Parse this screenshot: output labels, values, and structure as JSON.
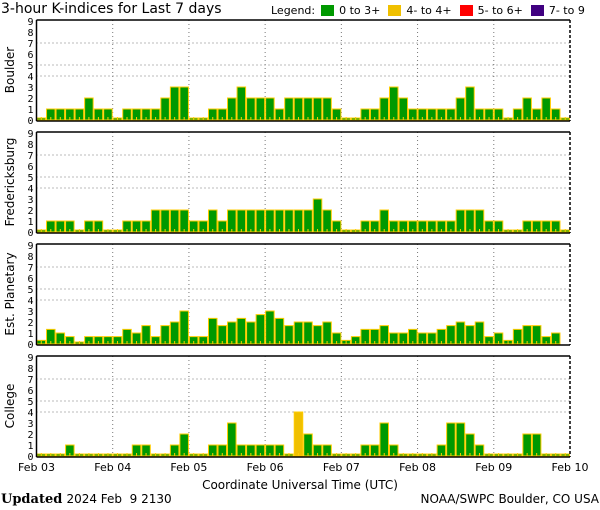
{
  "title": "3-hour K-indices for Last 7 days",
  "legend": {
    "label": "Legend:",
    "items": [
      {
        "label": "0 to 3+",
        "color": "#009900"
      },
      {
        "label": "4- to 4+",
        "color": "#f0c000"
      },
      {
        "label": "5- to 6+",
        "color": "#ff0000"
      },
      {
        "label": "7- to 9",
        "color": "#400080"
      }
    ]
  },
  "bar_outline_color": "#ffcc00",
  "footer": {
    "updated_label": "Updated",
    "updated_value": "2024 Feb  9 2130",
    "credit": "NOAA/SWPC Boulder, CO USA"
  },
  "chart_data": [
    {
      "type": "bar",
      "title": "Boulder",
      "xlabel": "Coordinate Universal Time (UTC)",
      "x_ticks": [
        "Feb 03",
        "Feb 04",
        "Feb 05",
        "Feb 06",
        "Feb 07",
        "Feb 08",
        "Feb 09",
        "Feb 10"
      ],
      "y_ticks": [
        0,
        1,
        2,
        3,
        4,
        5,
        6,
        7,
        8,
        9
      ],
      "ylim": [
        0,
        9
      ],
      "grid_y": [
        4,
        5,
        7
      ],
      "values": [
        0,
        1,
        1,
        1,
        1,
        2,
        1,
        1,
        0,
        1,
        1,
        1,
        1,
        2,
        3,
        3,
        0,
        0,
        1,
        1,
        2,
        3,
        2,
        2,
        2,
        1,
        2,
        2,
        2,
        2,
        2,
        1,
        0,
        0,
        1,
        1,
        2,
        3,
        2,
        1,
        1,
        1,
        1,
        1,
        2,
        3,
        1,
        1,
        1,
        0,
        1,
        2,
        1,
        2,
        1,
        0
      ]
    },
    {
      "type": "bar",
      "title": "Fredericksburg",
      "ylim": [
        0,
        9
      ],
      "values": [
        0,
        1,
        1,
        1,
        0,
        1,
        1,
        0,
        0,
        1,
        1,
        1,
        2,
        2,
        2,
        2,
        1,
        1,
        2,
        1,
        2,
        2,
        2,
        2,
        2,
        2,
        2,
        2,
        2,
        3,
        2,
        1,
        0,
        0,
        1,
        1,
        2,
        1,
        1,
        1,
        1,
        1,
        1,
        1,
        2,
        2,
        2,
        1,
        1,
        0,
        0,
        1,
        1,
        1,
        1,
        0
      ]
    },
    {
      "type": "bar",
      "title": "Est. Planetary",
      "ylim": [
        0,
        9
      ],
      "values": [
        0.33,
        1.33,
        1,
        0.67,
        0,
        0.67,
        0.67,
        0.67,
        0.67,
        1.33,
        1,
        1.67,
        0.67,
        1.67,
        2,
        3,
        0.67,
        0.67,
        2.33,
        1.67,
        2,
        2.33,
        2,
        2.67,
        3,
        2.33,
        1.67,
        2,
        2,
        1.67,
        2,
        1,
        0.33,
        0.67,
        1.33,
        1.33,
        1.67,
        1,
        1,
        1.33,
        1,
        1,
        1.33,
        1.67,
        2,
        1.67,
        2,
        0.67,
        1,
        0.33,
        1.33,
        1.67,
        1.67,
        0.67,
        1,
        null
      ]
    },
    {
      "type": "bar",
      "title": "College",
      "ylim": [
        0,
        9
      ],
      "values": [
        0,
        0,
        0,
        1,
        0,
        0,
        0,
        0,
        0,
        0,
        1,
        1,
        0,
        0,
        1,
        2,
        0,
        0,
        1,
        1,
        3,
        1,
        1,
        1,
        1,
        1,
        0,
        4,
        2,
        1,
        1,
        0,
        0,
        0,
        1,
        1,
        3,
        1,
        0,
        0,
        0,
        0,
        1,
        3,
        3,
        2,
        1,
        0,
        0,
        0,
        0,
        2,
        2,
        0,
        0,
        0
      ]
    }
  ]
}
